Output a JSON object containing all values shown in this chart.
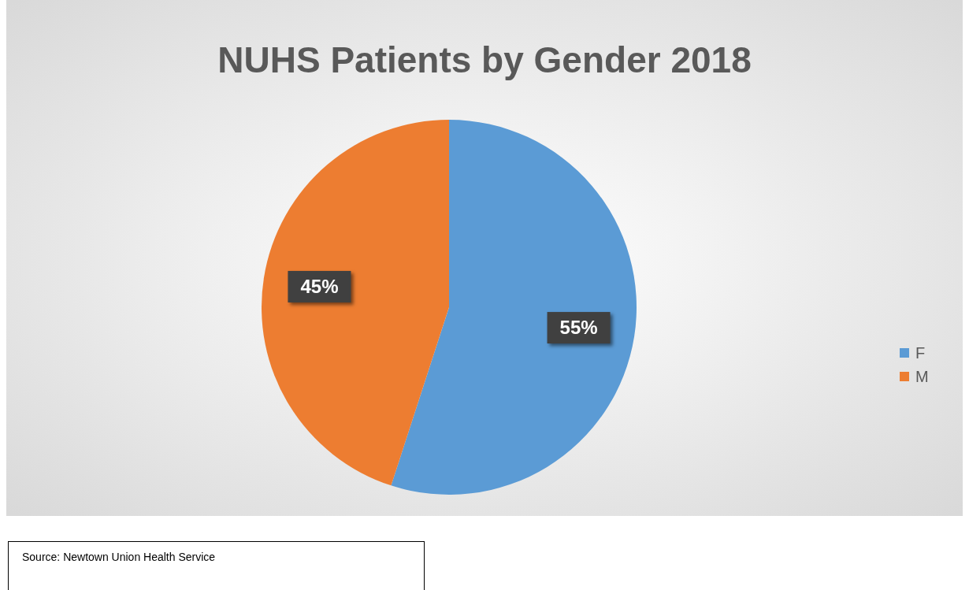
{
  "chart_data": {
    "type": "pie",
    "title": "NUHS Patients by Gender 2018",
    "categories": [
      "F",
      "M"
    ],
    "values": [
      55,
      45
    ],
    "colors": [
      "#5b9bd5",
      "#ed7d31"
    ],
    "value_labels": [
      "55%",
      "45%"
    ],
    "legend": "right",
    "annotations": [
      "Source: Newtown Union Health Service"
    ]
  }
}
